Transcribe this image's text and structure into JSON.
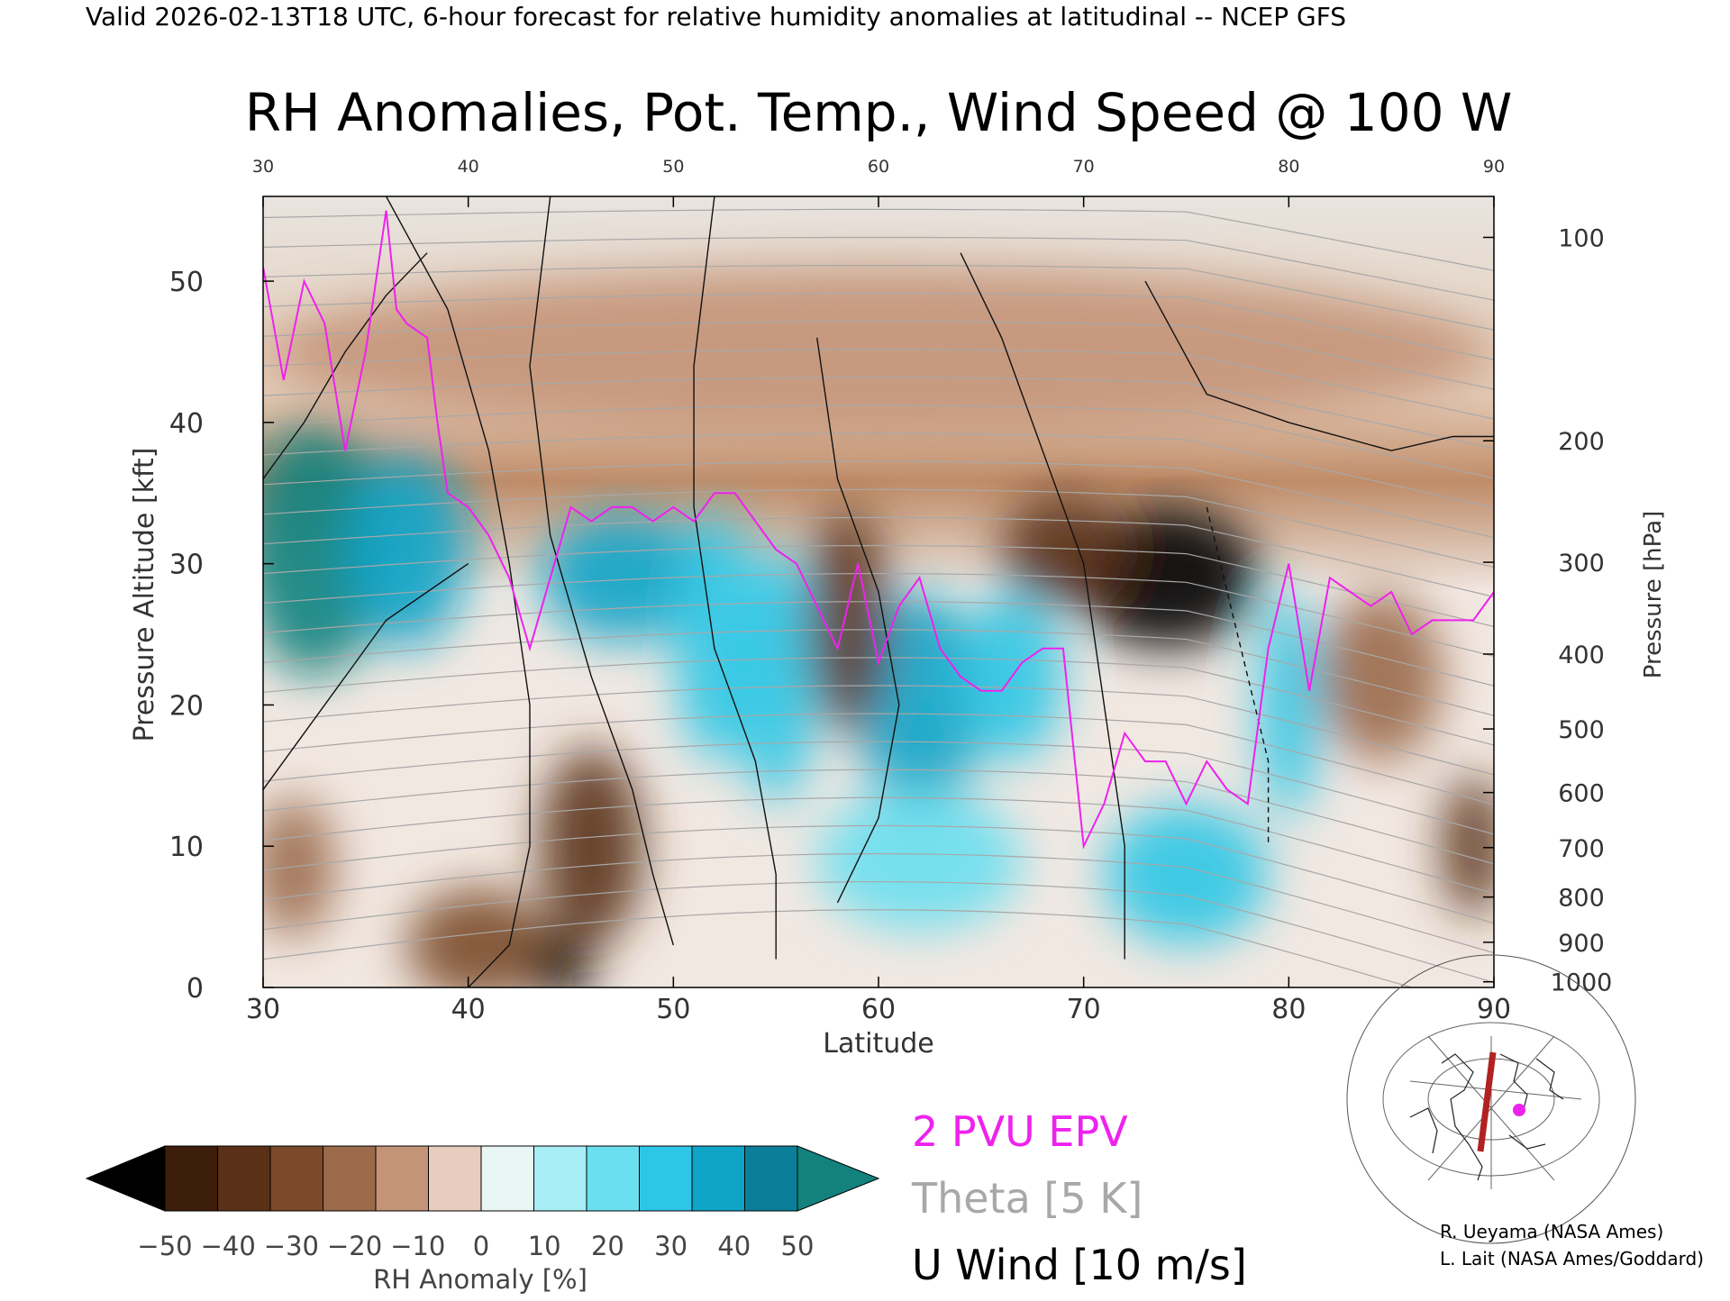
{
  "header": {
    "valid_line": "Valid 2026-02-13T18 UTC, 6-hour forecast for relative humidity anomalies at latitudinal -- NCEP GFS",
    "title": "RH Anomalies, Pot. Temp., Wind Speed @ 100 W"
  },
  "chart_data": {
    "type": "heatmap",
    "title": "RH Anomalies, Pot. Temp., Wind Speed @ 100 W",
    "xlabel": "Latitude",
    "ylabel": "Pressure Altitude [kft]",
    "ylabel_right": "Pressure [hPa]",
    "xlim": [
      30,
      90
    ],
    "ylim": [
      0,
      56
    ],
    "x_ticks": [
      30,
      40,
      50,
      60,
      70,
      80,
      90
    ],
    "y_ticks": [
      0,
      10,
      20,
      30,
      40,
      50
    ],
    "pressure_ticks": [
      {
        "label": "100",
        "kft": 53.1
      },
      {
        "label": "200",
        "kft": 38.7
      },
      {
        "label": "300",
        "kft": 30.1
      },
      {
        "label": "400",
        "kft": 23.6
      },
      {
        "label": "500",
        "kft": 18.3
      },
      {
        "label": "600",
        "kft": 13.8
      },
      {
        "label": "700",
        "kft": 9.9
      },
      {
        "label": "800",
        "kft": 6.4
      },
      {
        "label": "900",
        "kft": 3.2
      },
      {
        "label": "1000",
        "kft": 0.4
      }
    ],
    "colorbar": {
      "label": "RH Anomaly [%]",
      "ticks": [
        "−50",
        "−40",
        "−30",
        "−20",
        "−10",
        "0",
        "10",
        "20",
        "30",
        "40",
        "50"
      ],
      "colors": [
        "#000000",
        "#3d1e0c",
        "#5a3017",
        "#7a4a2a",
        "#9a6a4a",
        "#c49478",
        "#e6cdbd",
        "#e9f6f6",
        "#a8eef6",
        "#6adff0",
        "#2ec6e6",
        "#0ea4c8",
        "#0b7f99",
        "#13827e"
      ]
    },
    "rh_anomaly_blobs": [
      {
        "lat": 32.5,
        "kft": 31.0,
        "rlat": 3.5,
        "rkft": 9.0,
        "value": 50
      },
      {
        "lat": 37.0,
        "kft": 31.0,
        "rlat": 3.0,
        "rkft": 7.0,
        "value": 40
      },
      {
        "lat": 31.5,
        "kft": 8.5,
        "rlat": 2.0,
        "rkft": 5.0,
        "value": -20
      },
      {
        "lat": 40.5,
        "kft": 3.0,
        "rlat": 3.5,
        "rkft": 4.0,
        "value": -30
      },
      {
        "lat": 44.5,
        "kft": 1.5,
        "rlat": 1.5,
        "rkft": 2.5,
        "value": -50
      },
      {
        "lat": 46.0,
        "kft": 10.0,
        "rlat": 2.5,
        "rkft": 7.0,
        "value": -40
      },
      {
        "lat": 47.5,
        "kft": 29.0,
        "rlat": 4.0,
        "rkft": 4.5,
        "value": 40
      },
      {
        "lat": 52.0,
        "kft": 25.0,
        "rlat": 2.0,
        "rkft": 9.0,
        "value": 30
      },
      {
        "lat": 55.0,
        "kft": 22.0,
        "rlat": 2.0,
        "rkft": 9.0,
        "value": 30
      },
      {
        "lat": 62.0,
        "kft": 20.0,
        "rlat": 3.0,
        "rkft": 8.0,
        "value": 40
      },
      {
        "lat": 66.5,
        "kft": 22.0,
        "rlat": 2.5,
        "rkft": 6.0,
        "value": 30
      },
      {
        "lat": 62.0,
        "kft": 9.0,
        "rlat": 5.0,
        "rkft": 5.0,
        "value": 20
      },
      {
        "lat": 74.0,
        "kft": 29.0,
        "rlat": 4.5,
        "rkft": 5.0,
        "value": -50
      },
      {
        "lat": 69.0,
        "kft": 31.0,
        "rlat": 3.0,
        "rkft": 4.0,
        "value": -40
      },
      {
        "lat": 58.5,
        "kft": 26.0,
        "rlat": 2.0,
        "rkft": 8.0,
        "value": -40
      },
      {
        "lat": 75.0,
        "kft": 8.0,
        "rlat": 4.0,
        "rkft": 5.0,
        "value": 30
      },
      {
        "lat": 80.0,
        "kft": 20.0,
        "rlat": 1.5,
        "rkft": 8.0,
        "value": 30
      },
      {
        "lat": 84.5,
        "kft": 22.0,
        "rlat": 3.0,
        "rkft": 6.0,
        "value": -20
      },
      {
        "lat": 89.0,
        "kft": 10.0,
        "rlat": 1.5,
        "rkft": 5.0,
        "value": -40
      },
      {
        "lat": 60.0,
        "kft": 45.0,
        "rlat": 30.0,
        "rkft": 6.0,
        "value": -10
      }
    ],
    "overlays": [
      {
        "name": "2 PVU EPV",
        "color": "#ee22ee"
      },
      {
        "name": "Theta [5 K]",
        "color": "#a8a8a8"
      },
      {
        "name": "U Wind [10 m/s]",
        "color": "#000000"
      }
    ],
    "epv_2pvu": [
      [
        30,
        51
      ],
      [
        31,
        43
      ],
      [
        32,
        50
      ],
      [
        33,
        47
      ],
      [
        34,
        38
      ],
      [
        35,
        45
      ],
      [
        36,
        55
      ],
      [
        36.5,
        48
      ],
      [
        37,
        47
      ],
      [
        38,
        46
      ],
      [
        38.5,
        40
      ],
      [
        39,
        35
      ],
      [
        40,
        34
      ],
      [
        41,
        32
      ],
      [
        42,
        29
      ],
      [
        43,
        24
      ],
      [
        44,
        29
      ],
      [
        45,
        34
      ],
      [
        46,
        33
      ],
      [
        47,
        34
      ],
      [
        48,
        34
      ],
      [
        49,
        33
      ],
      [
        50,
        34
      ],
      [
        51,
        33
      ],
      [
        52,
        35
      ],
      [
        53,
        35
      ],
      [
        54,
        33
      ],
      [
        55,
        31
      ],
      [
        56,
        30
      ],
      [
        57,
        27
      ],
      [
        58,
        24
      ],
      [
        59,
        30
      ],
      [
        60,
        23
      ],
      [
        61,
        27
      ],
      [
        62,
        29
      ],
      [
        63,
        24
      ],
      [
        64,
        22
      ],
      [
        65,
        21
      ],
      [
        66,
        21
      ],
      [
        67,
        23
      ],
      [
        68,
        24
      ],
      [
        69,
        24
      ],
      [
        70,
        10
      ],
      [
        71,
        13
      ],
      [
        72,
        18
      ],
      [
        73,
        16
      ],
      [
        74,
        16
      ],
      [
        75,
        13
      ],
      [
        76,
        16
      ],
      [
        77,
        14
      ],
      [
        78,
        13
      ],
      [
        79,
        24
      ],
      [
        80,
        30
      ],
      [
        81,
        21
      ],
      [
        82,
        29
      ],
      [
        83,
        28
      ],
      [
        84,
        27
      ],
      [
        85,
        28
      ],
      [
        86,
        25
      ],
      [
        87,
        26
      ],
      [
        88,
        26
      ],
      [
        89,
        26
      ],
      [
        90,
        28
      ]
    ],
    "u_wind_levels_m_s": [
      0,
      10,
      30
    ],
    "inset_map": {
      "section_longitude": "100 W"
    }
  },
  "credits": {
    "line1": "R. Ueyama (NASA Ames)",
    "line2": "L. Lait (NASA Ames/Goddard)"
  }
}
